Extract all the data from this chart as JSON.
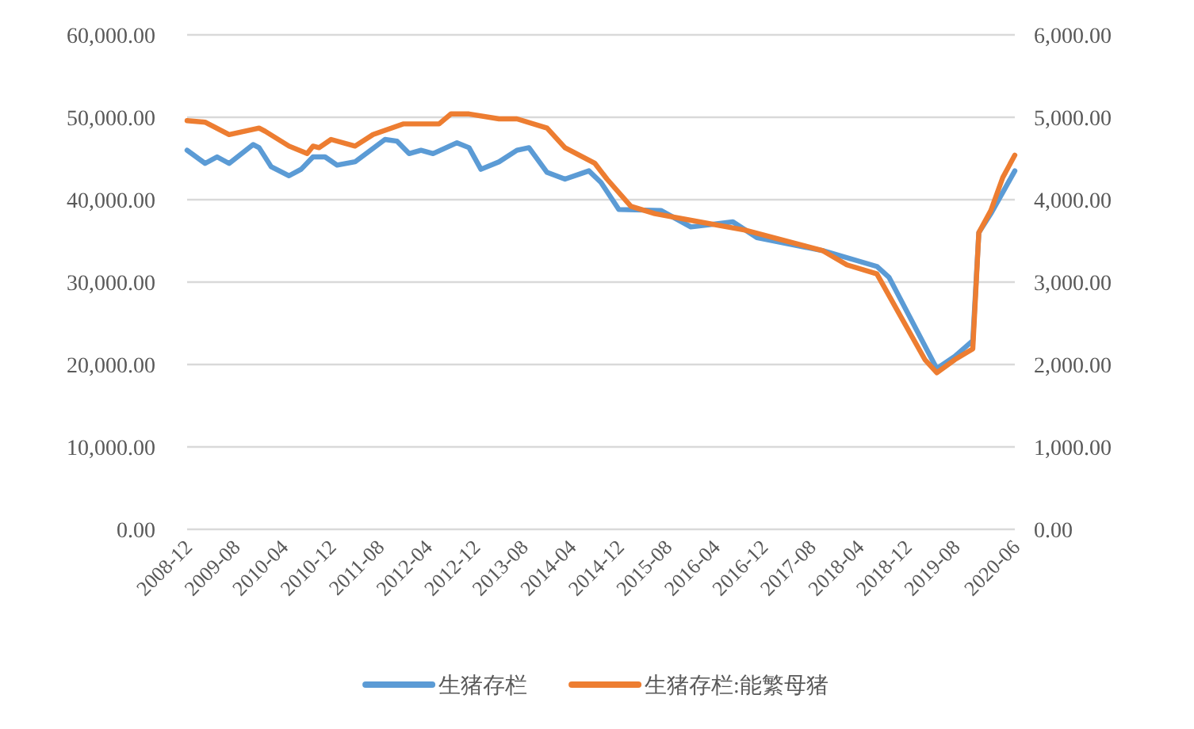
{
  "chart_data": {
    "type": "line",
    "legend": "bottom",
    "grid": "y",
    "marker": "none",
    "line_style": "solid",
    "xlim": [
      "2008-12",
      "2020-06"
    ],
    "xticks": [
      "2008-12",
      "2009-08",
      "2010-04",
      "2010-12",
      "2011-08",
      "2012-04",
      "2012-12",
      "2013-08",
      "2014-04",
      "2014-12",
      "2015-08",
      "2016-04",
      "2016-12",
      "2017-08",
      "2018-04",
      "2018-12",
      "2019-08",
      "2020-06"
    ],
    "ylim": [
      0,
      60000
    ],
    "yticks": [
      {
        "value": 0,
        "label": "0.00"
      },
      {
        "value": 10000,
        "label": "10,000.00"
      },
      {
        "value": 20000,
        "label": "20,000.00"
      },
      {
        "value": 30000,
        "label": "30,000.00"
      },
      {
        "value": 40000,
        "label": "40,000.00"
      },
      {
        "value": 50000,
        "label": "50,000.00"
      },
      {
        "value": 60000,
        "label": "60,000.00"
      }
    ],
    "y2lim": [
      0,
      6000
    ],
    "y2ticks": [
      {
        "value": 0,
        "label": "0.00"
      },
      {
        "value": 1000,
        "label": "1,000.00"
      },
      {
        "value": 2000,
        "label": "2,000.00"
      },
      {
        "value": 3000,
        "label": "3,000.00"
      },
      {
        "value": 4000,
        "label": "4,000.00"
      },
      {
        "value": 5000,
        "label": "5,000.00"
      },
      {
        "value": 6000,
        "label": "6,000.00"
      }
    ],
    "series": [
      {
        "name": "生猪存栏",
        "color": "#5b9bd5",
        "x": [
          "2008-12",
          "2009-03",
          "2009-05",
          "2009-07",
          "2009-11",
          "2009-12",
          "2010-02",
          "2010-05",
          "2010-07",
          "2010-09",
          "2010-11",
          "2011-01",
          "2011-04",
          "2011-09",
          "2011-11",
          "2012-01",
          "2012-03",
          "2012-05",
          "2012-09",
          "2012-11",
          "2013-01",
          "2013-04",
          "2013-07",
          "2013-09",
          "2013-12",
          "2014-03",
          "2014-07",
          "2014-09",
          "2014-12",
          "2015-07",
          "2015-12",
          "2016-07",
          "2016-11",
          "2017-10",
          "2018-07",
          "2018-09",
          "2019-05",
          "2019-08",
          "2019-11",
          "2019-12",
          "2020-02",
          "2020-06"
        ],
        "values": [
          46000,
          44400,
          45200,
          44400,
          46700,
          46300,
          44000,
          42900,
          43700,
          45200,
          45200,
          44200,
          44600,
          47300,
          47100,
          45600,
          46000,
          45600,
          46900,
          46300,
          43700,
          44600,
          46000,
          46300,
          43300,
          42500,
          43500,
          42100,
          38800,
          38700,
          36700,
          37300,
          35400,
          33800,
          31900,
          30600,
          19500,
          21000,
          22900,
          36000,
          38300,
          43500
        ]
      },
      {
        "name": "生猪存栏:能繁母猪",
        "color": "#ed7d31",
        "axis": "y2",
        "x": [
          "2008-12",
          "2009-03",
          "2009-07",
          "2009-12",
          "2010-01",
          "2010-05",
          "2010-08",
          "2010-09",
          "2010-10",
          "2010-12",
          "2011-04",
          "2011-07",
          "2011-12",
          "2012-06",
          "2012-08",
          "2012-11",
          "2013-04",
          "2013-07",
          "2013-12",
          "2014-03",
          "2014-08",
          "2014-10",
          "2015-02",
          "2015-06",
          "2015-12",
          "2016-09",
          "2017-10",
          "2018-02",
          "2018-07",
          "2018-11",
          "2019-03",
          "2019-05",
          "2019-08",
          "2019-11",
          "2019-12",
          "2020-02",
          "2020-04",
          "2020-06"
        ],
        "values": [
          4960,
          4940,
          4790,
          4870,
          4830,
          4650,
          4560,
          4650,
          4630,
          4730,
          4650,
          4790,
          4920,
          4920,
          5040,
          5040,
          4980,
          4980,
          4870,
          4630,
          4440,
          4250,
          3920,
          3830,
          3750,
          3630,
          3380,
          3210,
          3100,
          2580,
          2060,
          1900,
          2060,
          2190,
          3600,
          3870,
          4270,
          4540
        ]
      }
    ]
  }
}
